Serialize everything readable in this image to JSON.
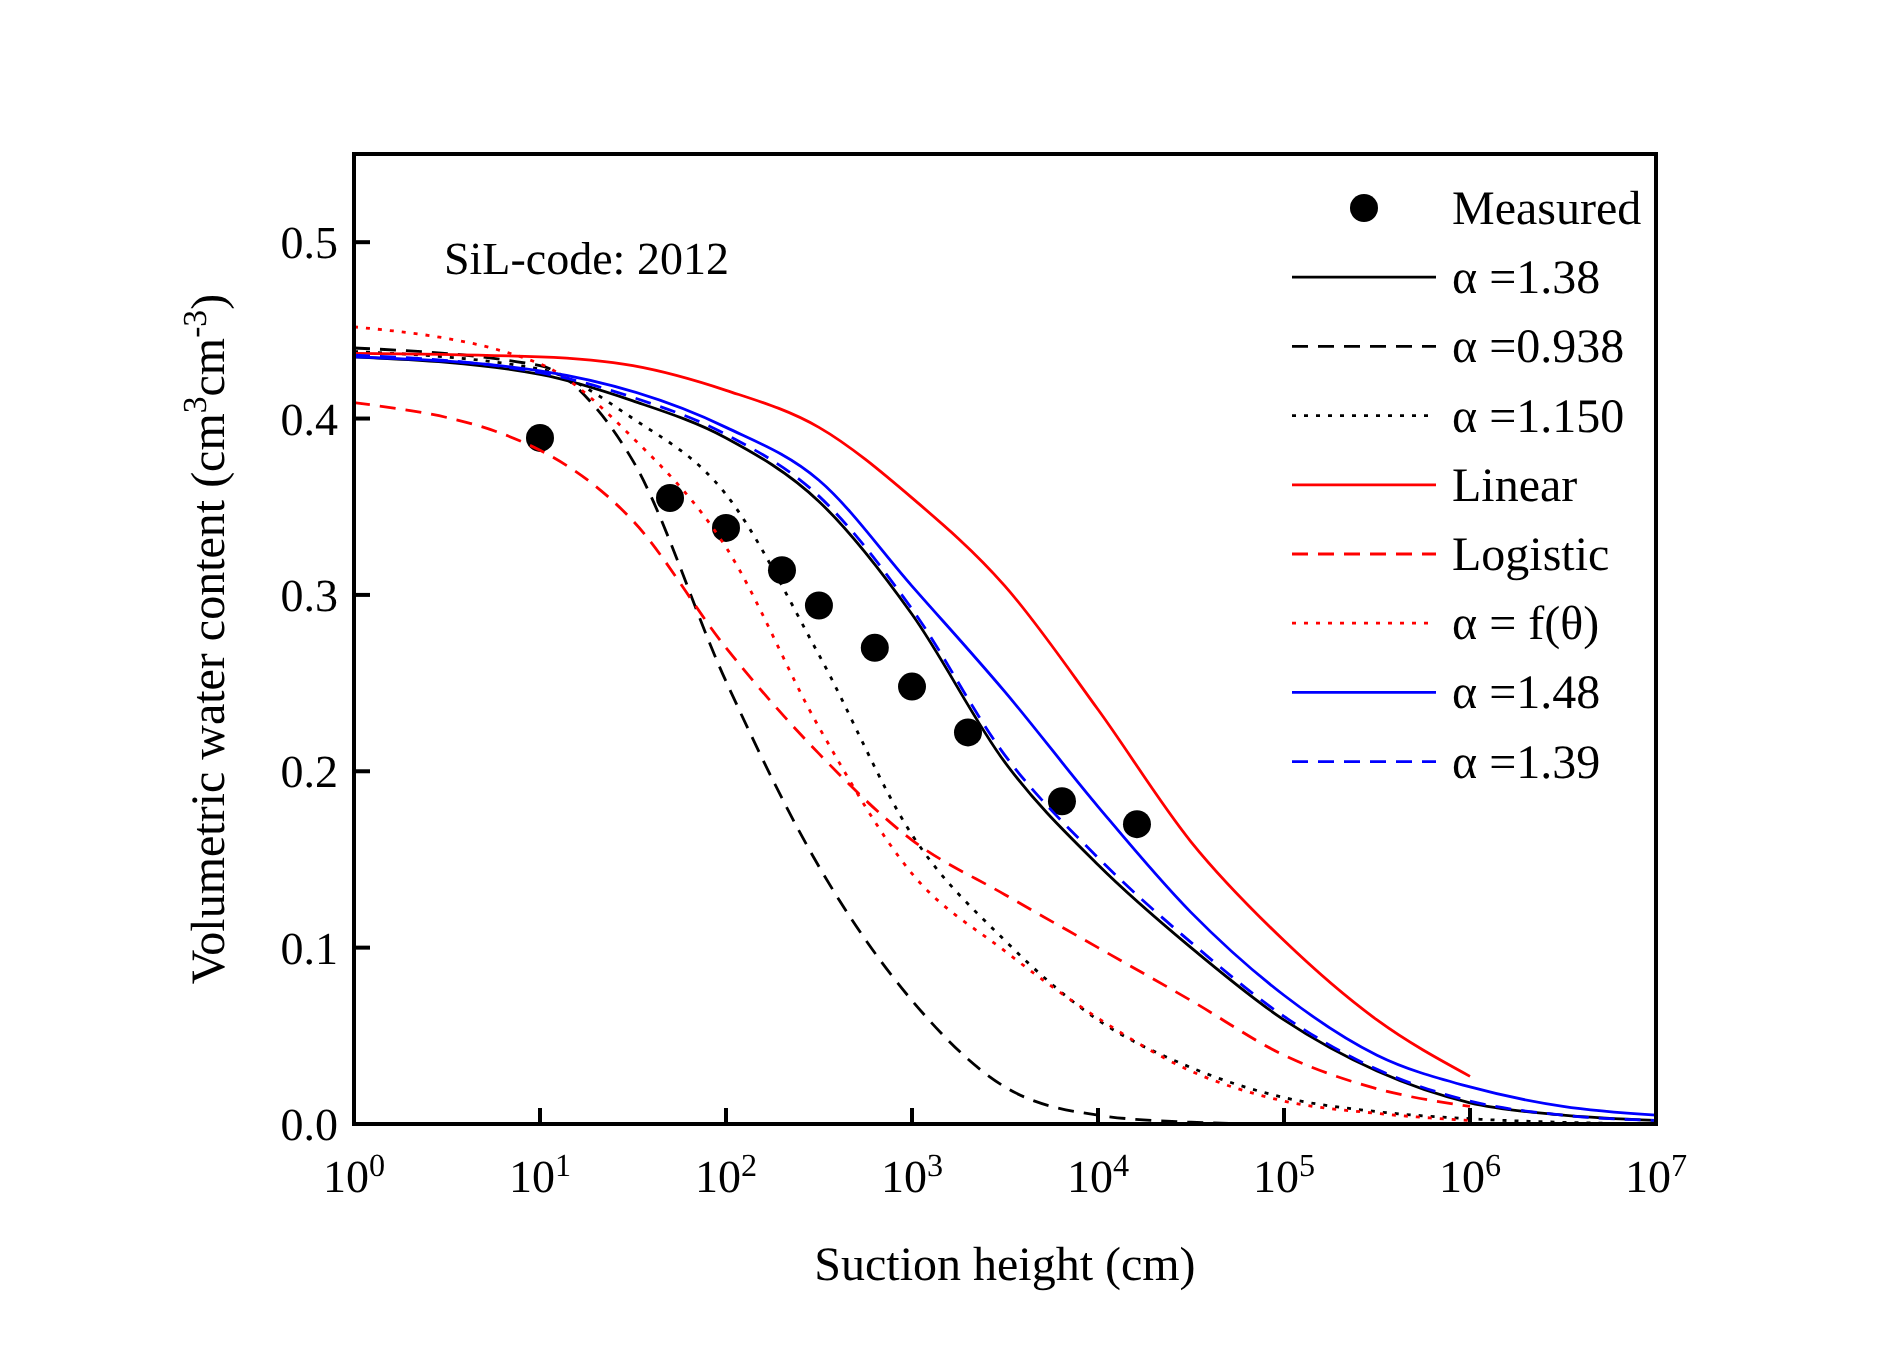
{
  "chart_data": {
    "type": "line",
    "xlabel": "Suction height (cm)",
    "ylabel": "Volumetric water content (cm$^{3}$cm$^{-3}$)",
    "annotations": [
      "SiL-code: 2012"
    ],
    "log": "x",
    "xlim": [
      1,
      10000000
    ],
    "xticks": [
      {
        "value": 1,
        "label": "10$^{0}$"
      },
      {
        "value": 10,
        "label": "10$^{1}$"
      },
      {
        "value": 100,
        "label": "10$^{2}$"
      },
      {
        "value": 1000,
        "label": "10$^{3}$"
      },
      {
        "value": 10000,
        "label": "10$^{4}$"
      },
      {
        "value": 100000,
        "label": "10$^{5}$"
      },
      {
        "value": 1000000,
        "label": "10$^{6}$"
      },
      {
        "value": 10000000,
        "label": "10$^{7}$"
      }
    ],
    "ylim": [
      0,
      0.55
    ],
    "yticks": [
      {
        "value": 0,
        "label": "0.0"
      },
      0.1,
      0.2,
      0.3,
      0.4,
      0.5
    ],
    "legend": "top right",
    "grid": false,
    "series": [
      {
        "name": "Measured",
        "type": "scatter",
        "marker": "circle",
        "color": "#000000",
        "x": [
          10,
          50,
          100,
          200,
          316,
          631,
          1000,
          2000,
          6400,
          16200
        ],
        "values": [
          0.389,
          0.355,
          0.338,
          0.314,
          0.294,
          0.27,
          0.248,
          0.222,
          0.183,
          0.17
        ]
      },
      {
        "name": "α =1.38",
        "line_style": "solid",
        "marker": "none",
        "color": "#000000",
        "x": [
          1,
          10,
          31.6,
          100,
          316,
          1000,
          3162,
          10000,
          31623,
          100000,
          316228,
          1000000,
          3162278,
          10000000
        ],
        "values": [
          0.435,
          0.425,
          0.41,
          0.389,
          0.353,
          0.289,
          0.205,
          0.147,
          0.1,
          0.059,
          0.03,
          0.012,
          0.005,
          0.002
        ]
      },
      {
        "name": "α =0.938",
        "line_style": "dashed",
        "marker": "none",
        "color": "#000000",
        "x": [
          1,
          10,
          20,
          31.6,
          100,
          316,
          1000,
          3162,
          10000,
          31623,
          100000
        ],
        "values": [
          0.44,
          0.43,
          0.406,
          0.376,
          0.251,
          0.146,
          0.07,
          0.021,
          0.005,
          0.001,
          0
        ]
      },
      {
        "name": "α =1.150",
        "line_style": "dotted",
        "marker": "none",
        "color": "#000000",
        "x": [
          1,
          10,
          31.6,
          100,
          316,
          1000,
          3162,
          10000,
          31623,
          100000,
          316228,
          1000000,
          10000000
        ],
        "values": [
          0.438,
          0.428,
          0.4,
          0.357,
          0.266,
          0.164,
          0.104,
          0.059,
          0.032,
          0.015,
          0.007,
          0.003,
          0
        ]
      },
      {
        "name": "Linear",
        "line_style": "solid",
        "marker": "none",
        "color": "#ff0000",
        "x": [
          1,
          10,
          31.6,
          100,
          316,
          1000,
          3162,
          10000,
          31623,
          100000,
          316228,
          1000000
        ],
        "values": [
          0.437,
          0.435,
          0.43,
          0.416,
          0.395,
          0.355,
          0.305,
          0.235,
          0.16,
          0.104,
          0.059,
          0.027
        ]
      },
      {
        "name": "Logistic",
        "line_style": "dashed",
        "marker": "none",
        "color": "#ff0000",
        "x": [
          1,
          10,
          31.6,
          100,
          316,
          1000,
          3162,
          10000,
          31623,
          100000,
          316228,
          1000000
        ],
        "values": [
          0.409,
          0.382,
          0.342,
          0.27,
          0.21,
          0.161,
          0.13,
          0.1,
          0.07,
          0.039,
          0.02,
          0.01
        ]
      },
      {
        "name": "α = f(θ)",
        "line_style": "dotted",
        "marker": "none",
        "color": "#ff0000",
        "x": [
          1,
          10,
          31.6,
          100,
          316,
          1000,
          3162,
          10000,
          31623,
          100000,
          316228,
          1000000
        ],
        "values": [
          0.452,
          0.431,
          0.389,
          0.327,
          0.225,
          0.142,
          0.098,
          0.06,
          0.03,
          0.013,
          0.006,
          0.002
        ]
      },
      {
        "name": "α =1.48",
        "line_style": "solid",
        "marker": "none",
        "color": "#0000ff",
        "x": [
          1,
          10,
          100,
          316,
          1000,
          3162,
          10000,
          31623,
          100000,
          316228,
          1000000,
          3162278,
          10000000
        ],
        "values": [
          0.435,
          0.427,
          0.395,
          0.365,
          0.305,
          0.245,
          0.18,
          0.12,
          0.073,
          0.039,
          0.021,
          0.01,
          0.005
        ]
      },
      {
        "name": "α =1.39",
        "line_style": "dashed",
        "marker": "none",
        "color": "#0000ff",
        "x": [
          1,
          10,
          31.6,
          100,
          316,
          1000,
          3162,
          10000,
          31623,
          100000,
          316228,
          1000000,
          3162278,
          10000000
        ],
        "values": [
          0.436,
          0.426,
          0.412,
          0.391,
          0.356,
          0.292,
          0.209,
          0.151,
          0.103,
          0.061,
          0.031,
          0.013,
          0.005,
          0.002
        ]
      }
    ]
  }
}
